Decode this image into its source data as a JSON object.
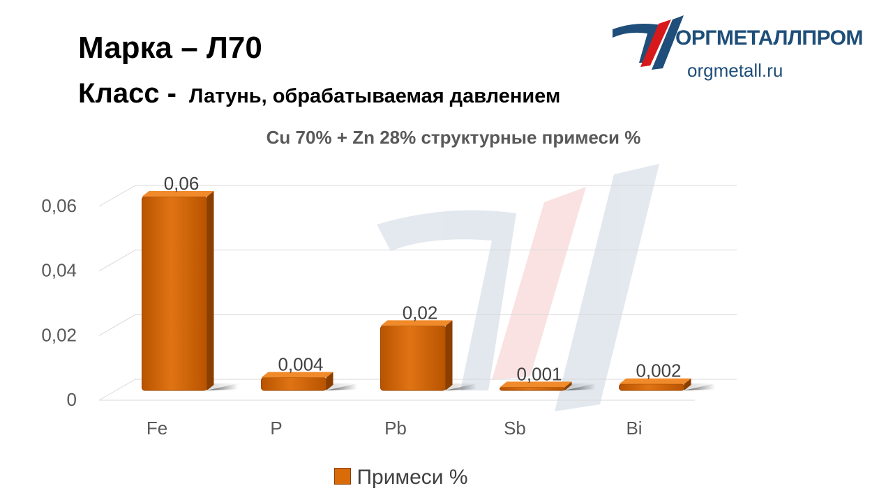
{
  "header": {
    "mark_label": "Марка",
    "mark_dash": "–",
    "mark_value": "Л70",
    "class_label": "Класс -",
    "class_value": "Латунь, обрабатываемая давлением"
  },
  "logo": {
    "name": "ОРГМЕТАЛЛПРОМ",
    "url": "orgmetall.ru",
    "color": "#1e4e79",
    "accent": "#d7191c"
  },
  "chart_data": {
    "type": "bar",
    "title": "Cu 70% + Zn 28% структурные примеси %",
    "categories": [
      "Fe",
      "P",
      "Pb",
      "Sb",
      "Bi"
    ],
    "series": [
      {
        "name": "Примеси %",
        "values": [
          0.06,
          0.004,
          0.02,
          0.001,
          0.002
        ],
        "labels": [
          "0,06",
          "0,004",
          "0,02",
          "0,001",
          "0,002"
        ],
        "color": "#d96b09"
      }
    ],
    "yticks": [
      "0",
      "0,02",
      "0,04",
      "0,06"
    ],
    "ytick_values": [
      0,
      0.02,
      0.04,
      0.06
    ],
    "ylim": [
      0,
      0.06
    ],
    "grid": true,
    "legend": "bottom",
    "style": "3d-bar"
  }
}
